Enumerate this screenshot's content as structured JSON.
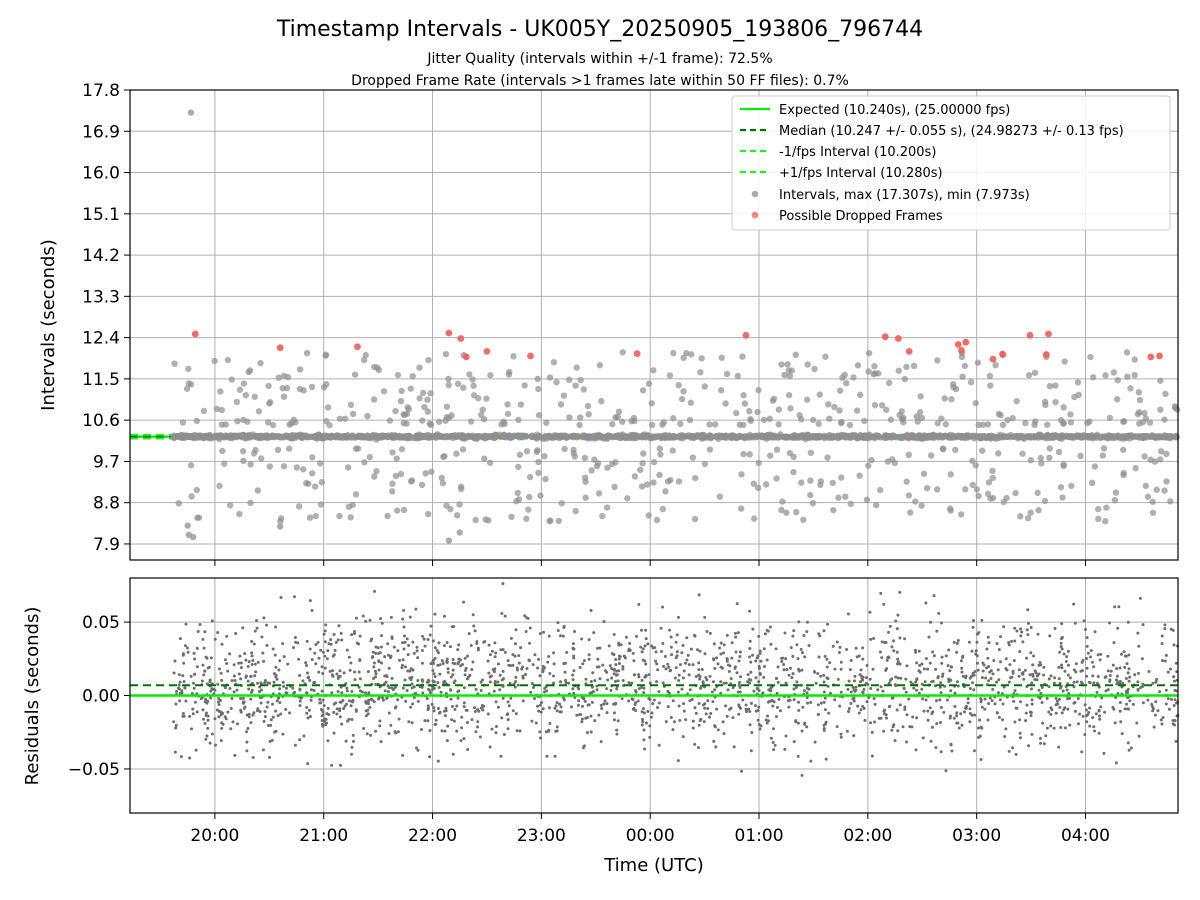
{
  "title": "Timestamp Intervals - UK005Y_20250905_193806_796744",
  "subtitle_1": "Jitter Quality (intervals within +/-1 frame): 72.5%",
  "subtitle_2": "Dropped Frame Rate (intervals >1 frames late within 50 FF files): 0.7%",
  "colors": {
    "expected": "#00ee00",
    "median": "#007000",
    "interval_bounds": "#22ee22",
    "points": "#8f8f8f",
    "dropped": "#f25c54",
    "residual_points": "#6e6e6e",
    "grid": "#b0b0b0"
  },
  "chart_data": [
    {
      "type": "scatter",
      "ylabel": "Intervals (seconds)",
      "ylim": [
        7.55,
        17.8
      ],
      "yticks": [
        "17.8",
        "16.9",
        "16.0",
        "15.1",
        "14.2",
        "13.3",
        "12.4",
        "11.5",
        "10.6",
        "9.7",
        "8.8",
        "7.9"
      ],
      "ytick_values": [
        17.8,
        16.9,
        16.0,
        15.1,
        14.2,
        13.3,
        12.4,
        11.5,
        10.6,
        9.7,
        8.8,
        7.9
      ],
      "xlim_hours": [
        19.22,
        28.85
      ],
      "grid": true,
      "legend_position": "top-right",
      "lines": {
        "expected": 10.24,
        "median": 10.247,
        "minus_one_frame": 10.2,
        "plus_one_frame": 10.28
      },
      "legend": [
        "Expected (10.240s), (25.00000 fps)",
        "Median (10.247 +/- 0.055 s), (24.98273 +/- 0.13 fps)",
        "-1/fps Interval (10.200s)",
        "+1/fps Interval (10.280s)",
        "Intervals, max (17.307s), min (7.973s)",
        "Possible Dropped Frames"
      ],
      "extremes": {
        "max": 17.307,
        "min": 7.973
      },
      "dropped_frames": [
        [
          19.82,
          12.48
        ],
        [
          20.6,
          12.18
        ],
        [
          21.31,
          12.2
        ],
        [
          22.15,
          12.5
        ],
        [
          22.26,
          12.38
        ],
        [
          22.31,
          11.98
        ],
        [
          22.5,
          12.1
        ],
        [
          22.9,
          12.0
        ],
        [
          23.88,
          12.05
        ],
        [
          24.88,
          12.45
        ],
        [
          26.16,
          12.42
        ],
        [
          26.28,
          12.38
        ],
        [
          26.38,
          12.1
        ],
        [
          26.83,
          12.25
        ],
        [
          26.86,
          12.12
        ],
        [
          26.9,
          12.3
        ],
        [
          27.15,
          11.93
        ],
        [
          27.24,
          12.03
        ],
        [
          27.49,
          12.45
        ],
        [
          27.64,
          12.03
        ],
        [
          27.66,
          12.48
        ],
        [
          28.6,
          11.98
        ],
        [
          28.68,
          12.0
        ]
      ],
      "notable_intervals": [
        [
          19.78,
          17.307
        ],
        [
          19.75,
          8.3
        ],
        [
          19.76,
          8.1
        ],
        [
          19.8,
          8.05
        ],
        [
          22.15,
          7.973
        ],
        [
          20.6,
          8.28
        ],
        [
          22.25,
          8.15
        ]
      ]
    },
    {
      "type": "scatter",
      "ylabel": "Residuals (seconds)",
      "xlabel": "Time (UTC)",
      "ylim": [
        -0.08,
        0.08
      ],
      "yticks": [
        "0.05",
        "0.00",
        "−0.05"
      ],
      "ytick_values": [
        0.05,
        0.0,
        -0.05
      ],
      "xticks": [
        "20:00",
        "21:00",
        "22:00",
        "23:00",
        "00:00",
        "01:00",
        "02:00",
        "03:00",
        "04:00"
      ],
      "xtick_hours": [
        20,
        21,
        22,
        23,
        24,
        25,
        26,
        27,
        28
      ],
      "xlim_hours": [
        19.22,
        28.85
      ],
      "grid": true,
      "lines": {
        "expected": 0.0,
        "median": 0.007
      }
    }
  ]
}
